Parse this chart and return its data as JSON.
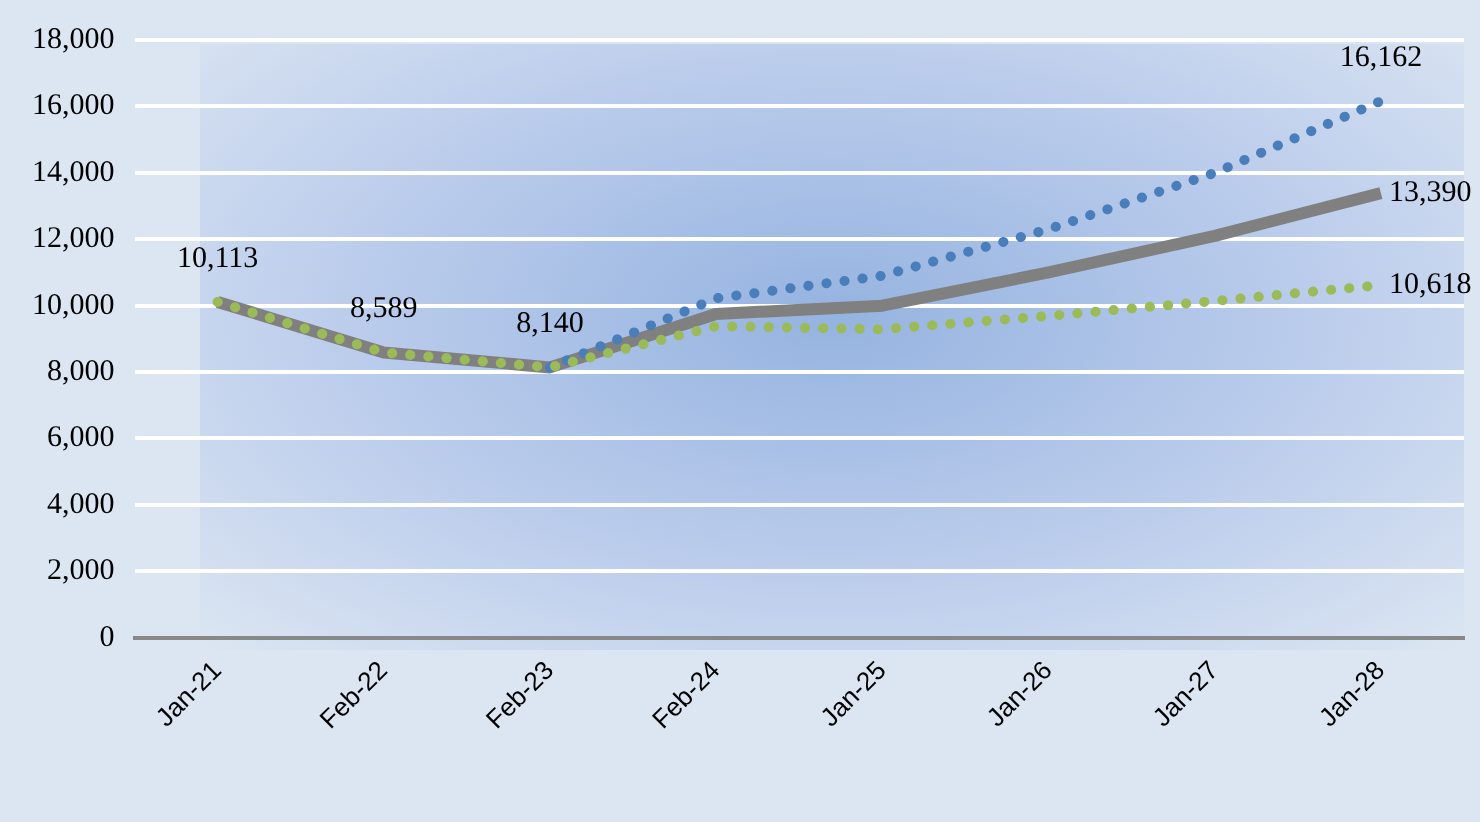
{
  "chart_data": {
    "type": "line",
    "categories": [
      "Jan-21",
      "Feb-22",
      "Feb-23",
      "Feb-24",
      "Jan-25",
      "Jan-26",
      "Jan-27",
      "Jan-28"
    ],
    "series": [
      {
        "color": "#808080",
        "line_style": "solid",
        "values": [
          10113,
          8589,
          8140,
          9750,
          10000,
          11000,
          12100,
          13390
        ],
        "value_labels": [
          "10,113",
          "8,589",
          "8,140",
          null,
          null,
          null,
          null,
          "13,390"
        ]
      },
      {
        "color": "#4a7ebb",
        "line_style": "dotted",
        "values": [
          null,
          null,
          8140,
          10220,
          10900,
          12300,
          14000,
          16162
        ],
        "value_labels": [
          null,
          null,
          null,
          null,
          null,
          null,
          null,
          "16,162"
        ]
      },
      {
        "color": "#9bbb59",
        "line_style": "dotted",
        "values": [
          10113,
          8589,
          8140,
          9380,
          9290,
          9690,
          10140,
          10618
        ],
        "value_labels": [
          null,
          null,
          null,
          null,
          null,
          null,
          null,
          "10,618"
        ]
      }
    ],
    "ylim": [
      0,
      18000
    ],
    "yticks": [
      {
        "value": 0,
        "label": "0"
      },
      {
        "value": 2000,
        "label": "2,000"
      },
      {
        "value": 4000,
        "label": "4,000"
      },
      {
        "value": 6000,
        "label": "6,000"
      },
      {
        "value": 8000,
        "label": "8,000"
      },
      {
        "value": 10000,
        "label": "10,000"
      },
      {
        "value": 12000,
        "label": "12,000"
      },
      {
        "value": 14000,
        "label": "14,000"
      },
      {
        "value": 16000,
        "label": "16,000"
      },
      {
        "value": 18000,
        "label": "18,000"
      }
    ],
    "grid": "y",
    "legend": false,
    "marker": "none"
  }
}
